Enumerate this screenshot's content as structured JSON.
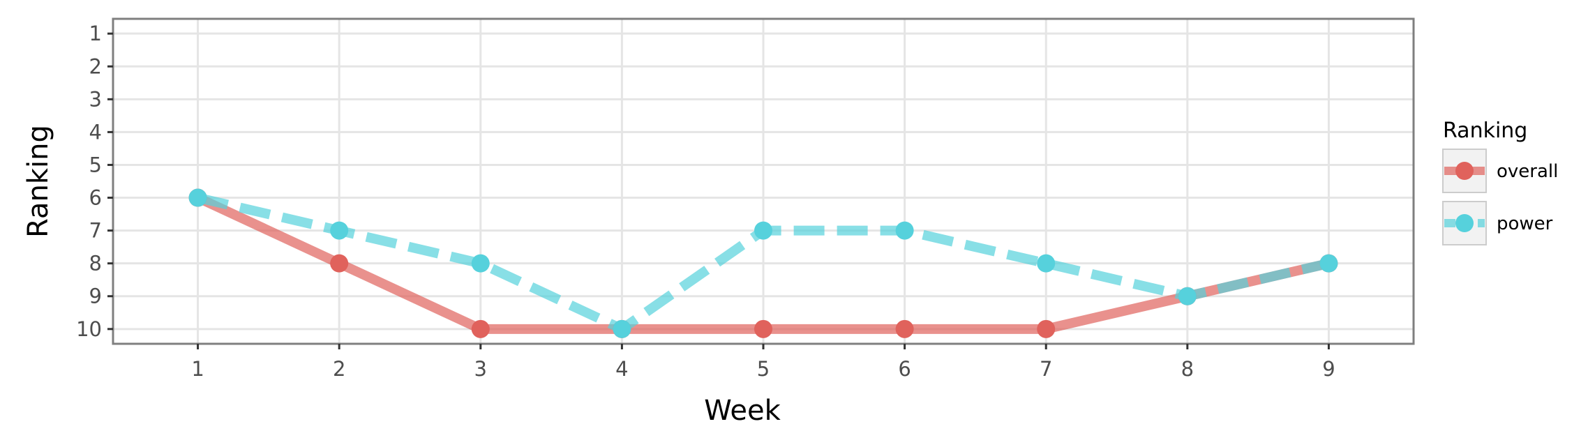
{
  "chart_data": {
    "type": "line",
    "xlabel": "Week",
    "ylabel": "Ranking",
    "x": [
      1,
      2,
      3,
      4,
      5,
      6,
      7,
      8,
      9
    ],
    "xlim": [
      0.4,
      9.6
    ],
    "ylim": [
      10.45,
      0.55
    ],
    "y_reversed": true,
    "y_ticks": [
      1,
      2,
      3,
      4,
      5,
      6,
      7,
      8,
      9,
      10
    ],
    "grid": true,
    "legend": {
      "title": "Ranking",
      "position": "right"
    },
    "series": [
      {
        "name": "overall",
        "values": [
          6,
          8,
          10,
          10,
          10,
          10,
          10,
          9,
          8
        ],
        "color": "#e0625c",
        "line_style": "solid"
      },
      {
        "name": "power",
        "values": [
          6,
          7,
          8,
          10,
          7,
          7,
          8,
          9,
          8
        ],
        "color": "#56d1dc",
        "line_style": "dashed"
      }
    ]
  }
}
